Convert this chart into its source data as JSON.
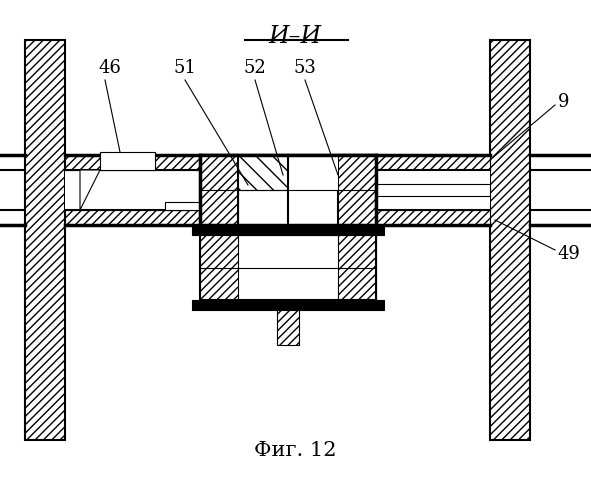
{
  "title": "И–И",
  "caption": "Фиг. 12",
  "bg_color": "#ffffff",
  "line_color": "#000000",
  "label_fontsize": 13,
  "title_fontsize": 17,
  "caption_fontsize": 15,
  "fig_w": 5.91,
  "fig_h": 5.0,
  "dpi": 100
}
